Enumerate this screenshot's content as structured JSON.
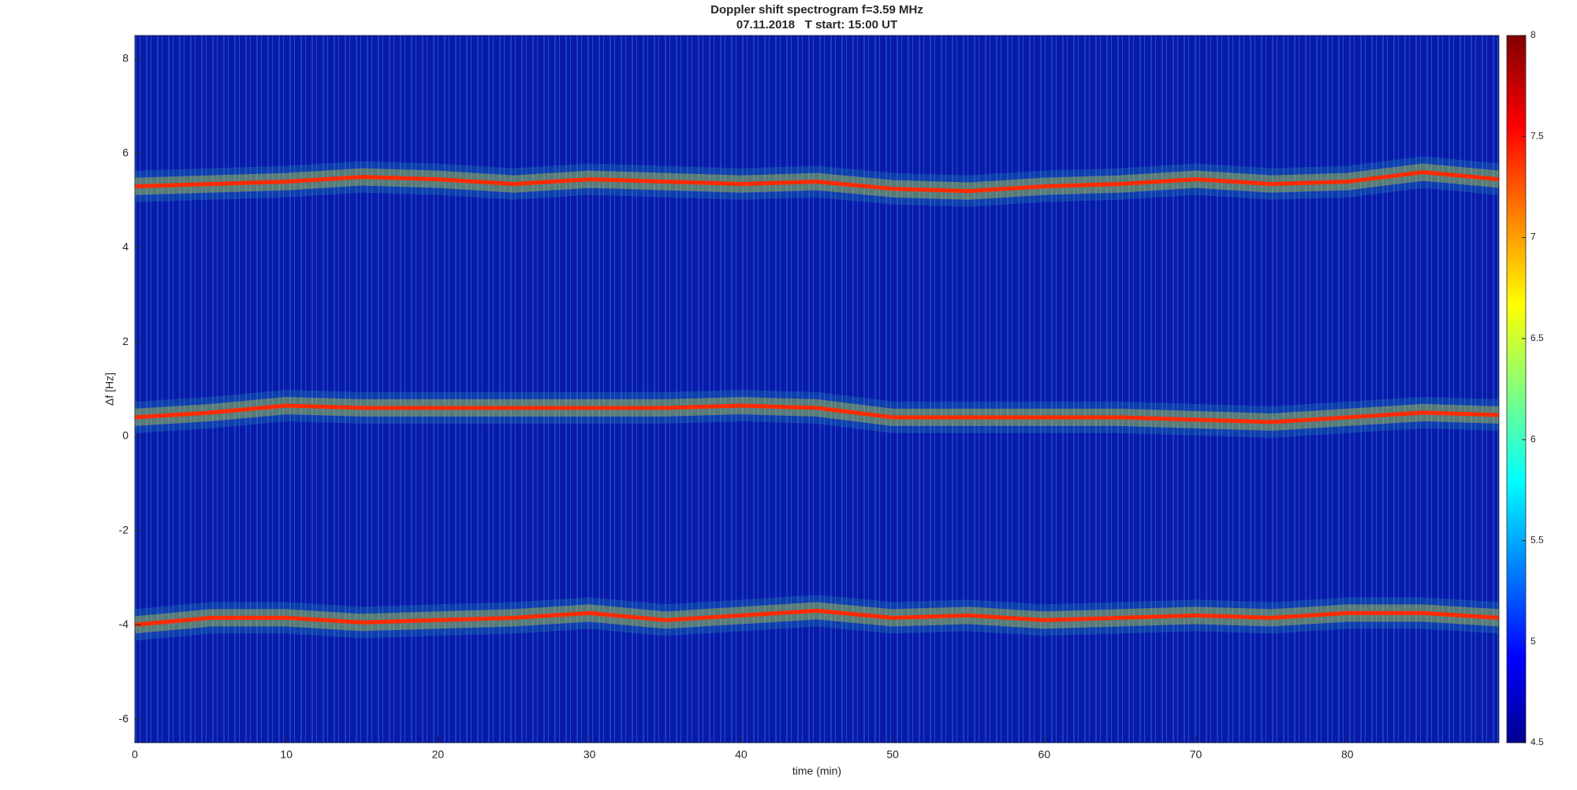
{
  "chart_data": {
    "type": "spectrogram",
    "title": "Doppler shift spectrogram f=3.59 MHz",
    "subtitle": "07.11.2018   T start: 15:00 UT",
    "xlabel": "time (min)",
    "ylabel": "Δf [Hz]",
    "xlim": [
      0,
      90
    ],
    "xticks": [
      0,
      10,
      20,
      30,
      40,
      50,
      60,
      70,
      80
    ],
    "ylim": [
      -6.5,
      8.5
    ],
    "yticks": [
      -6,
      -4,
      -2,
      0,
      2,
      4,
      6,
      8
    ],
    "clim": [
      4.5,
      8
    ],
    "cticks": [
      4.5,
      5,
      5.5,
      6,
      6.5,
      7,
      7.5,
      8
    ],
    "x": [
      0,
      5,
      10,
      15,
      20,
      25,
      30,
      35,
      40,
      45,
      50,
      55,
      60,
      65,
      70,
      75,
      80,
      85,
      90
    ],
    "series": [
      {
        "color": "#ff2a00",
        "values": [
          5.3,
          5.35,
          5.4,
          5.5,
          5.45,
          5.35,
          5.45,
          5.4,
          5.35,
          5.4,
          5.25,
          5.2,
          5.3,
          5.35,
          5.45,
          5.35,
          5.4,
          5.6,
          5.45
        ]
      },
      {
        "color": "#ff2a00",
        "values": [
          0.4,
          0.5,
          0.65,
          0.6,
          0.6,
          0.6,
          0.6,
          0.6,
          0.65,
          0.6,
          0.4,
          0.4,
          0.4,
          0.4,
          0.35,
          0.3,
          0.4,
          0.5,
          0.45
        ]
      },
      {
        "color": "#ff2a00",
        "values": [
          -4.0,
          -3.85,
          -3.85,
          -3.95,
          -3.9,
          -3.85,
          -3.75,
          -3.9,
          -3.8,
          -3.7,
          -3.85,
          -3.8,
          -3.9,
          -3.85,
          -3.8,
          -3.85,
          -3.75,
          -3.75,
          -3.85
        ]
      }
    ]
  }
}
